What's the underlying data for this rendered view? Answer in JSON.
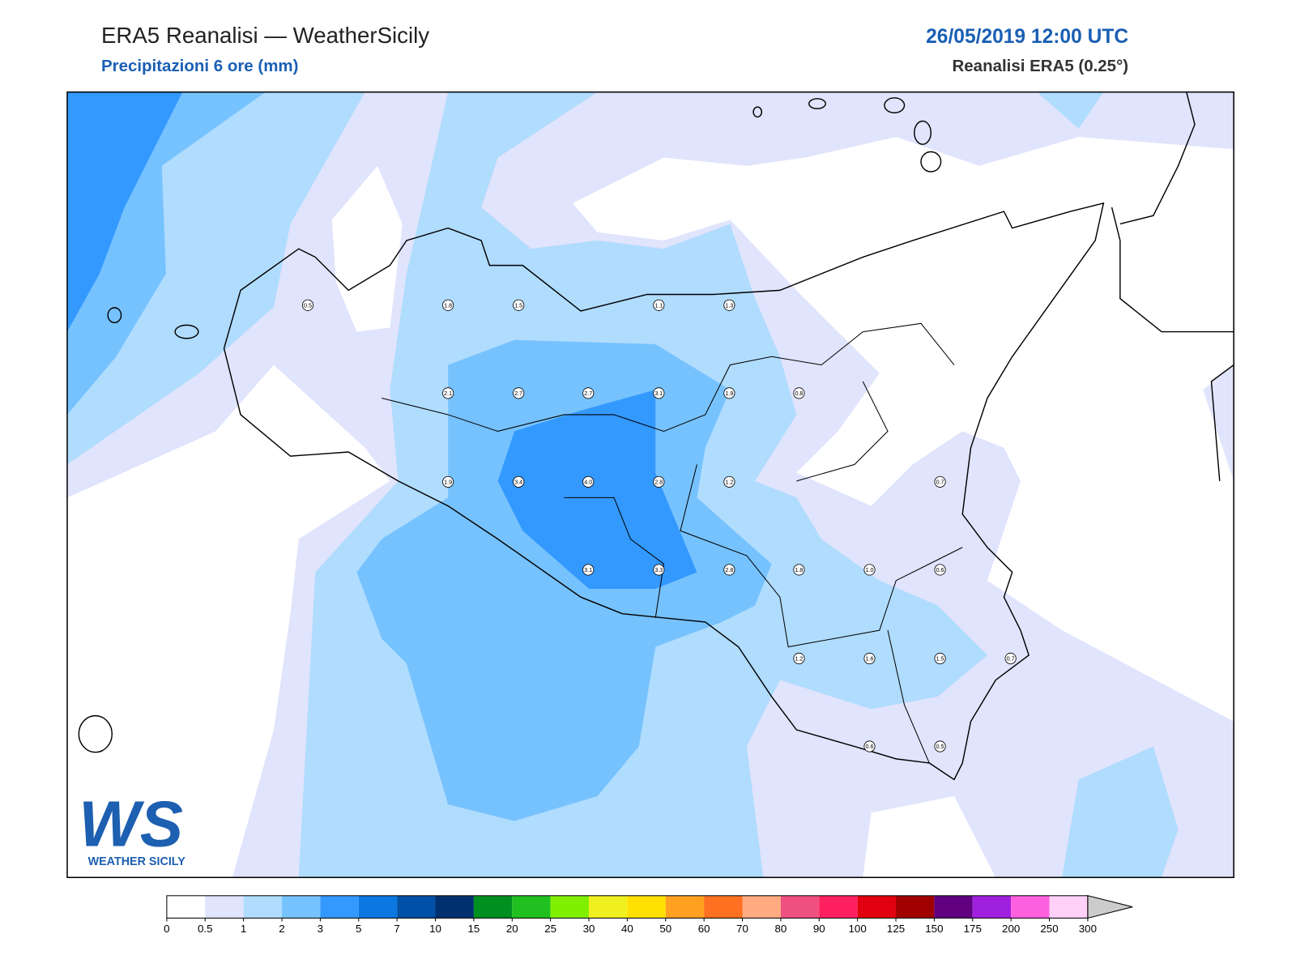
{
  "header": {
    "title": "ERA5 Reanalisi — WeatherSicily",
    "subtitle": "Precipitazioni 6 ore (mm)",
    "date": "26/05/2019 12:00 UTC",
    "model": "Reanalisi ERA5 (0.25°)"
  },
  "stations": [
    "0.5",
    "1.8",
    "1.5",
    "1.1",
    "1.3",
    "2.1",
    "2.7",
    "2.7",
    "3.1",
    "1.9",
    "0.8",
    "1.9",
    "3.4",
    "4.0",
    "2.8",
    "1.2",
    "0.7",
    "3.1",
    "3.3",
    "2.8",
    "1.8",
    "1.0",
    "0.6",
    "1.2",
    "1.6",
    "1.5",
    "0.7",
    "0.6",
    "0.5"
  ],
  "colorbar": {
    "levels": [
      0,
      0.5,
      1,
      2,
      3,
      5,
      7,
      10,
      15,
      20,
      25,
      30,
      40,
      50,
      60,
      70,
      80,
      90,
      100,
      125,
      150,
      175,
      200,
      250,
      300
    ],
    "colors": [
      "#ffffff",
      "#e0e4fc",
      "#b0dcfe",
      "#76c2fe",
      "#3399ff",
      "#0a78e0",
      "#0050a8",
      "#003070",
      "#009020",
      "#20c020",
      "#80f000",
      "#f0f020",
      "#ffe000",
      "#ffa020",
      "#ff7020",
      "#ffaa80",
      "#f05080",
      "#ff2060",
      "#e00010",
      "#a00000",
      "#600080",
      "#a020e0",
      "#ff60e0",
      "#ffd0f8"
    ]
  },
  "logo": {
    "mark": "WS",
    "text": "WEATHER SICILY"
  }
}
